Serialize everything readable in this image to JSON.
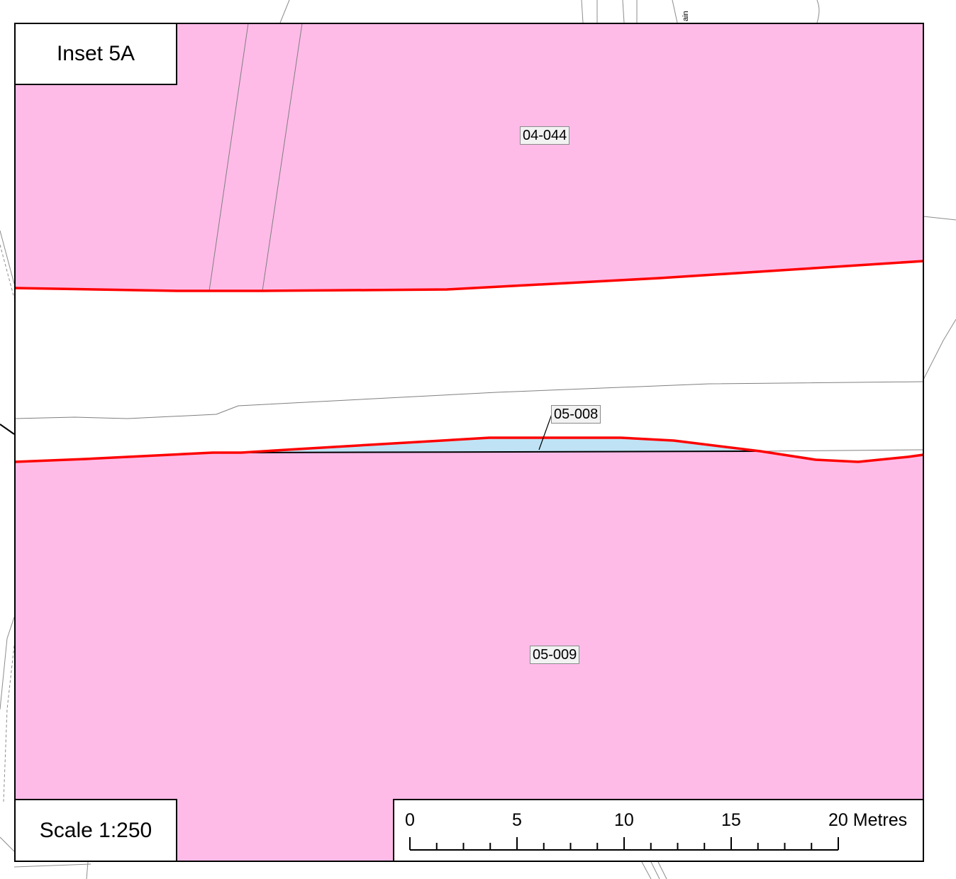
{
  "inset": {
    "title": "Inset 5A"
  },
  "scale": {
    "text": "Scale 1:250"
  },
  "scalebar": {
    "ticks": [
      "0",
      "5",
      "10",
      "15",
      "20 Metres"
    ],
    "max_value": 20,
    "minor_step": 1.25,
    "unit": "Metres"
  },
  "parcels": [
    {
      "id": "04-044",
      "fill": "#ffbbe8"
    },
    {
      "id": "05-008",
      "fill": "#bfe3f5"
    },
    {
      "id": "05-009",
      "fill": "#ffbbe8"
    }
  ],
  "colors": {
    "parcel_fill": "#ffbbe8",
    "highlight_fill": "#bfe3f5",
    "boundary_red": "#ff0000",
    "linework": "#8c8c8c",
    "frame": "#000000"
  },
  "background_text": {
    "street_fragment": "ain"
  }
}
